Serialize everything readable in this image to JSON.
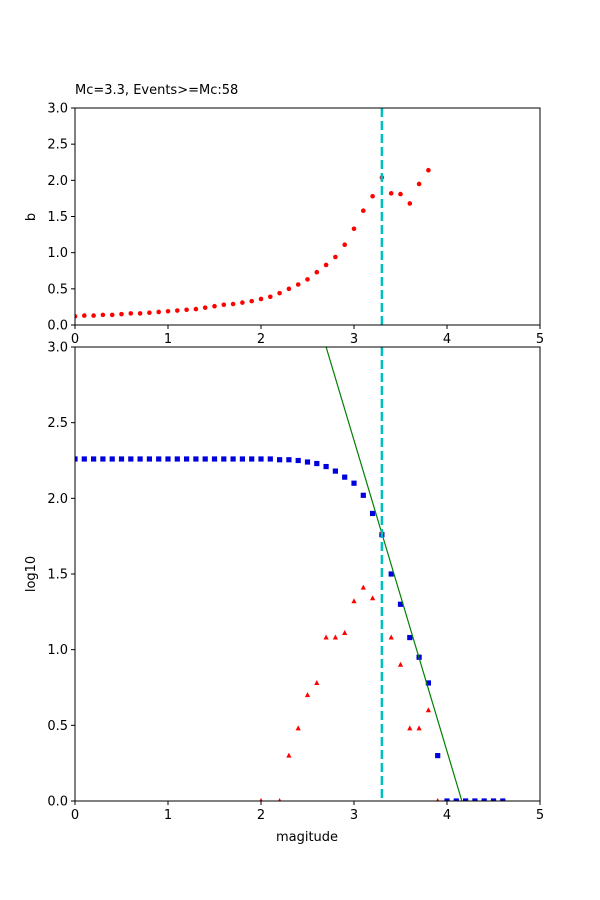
{
  "chart_data": [
    {
      "type": "scatter",
      "title": "Mc=3.3, Events>=Mc:58",
      "xlabel": "",
      "ylabel": "b",
      "xlim": [
        0,
        5
      ],
      "ylim": [
        0,
        3.0
      ],
      "xticks": [
        "0",
        "1",
        "2",
        "3",
        "4",
        "5"
      ],
      "yticks": [
        "0.0",
        "0.5",
        "1.0",
        "1.5",
        "2.0",
        "2.5",
        "3.0"
      ],
      "colors": {
        "points": "#ff0000",
        "mc_line": "#00bfbf"
      },
      "mc": 3.3,
      "series": [
        {
          "marker": "circle",
          "x": [
            0.0,
            0.1,
            0.2,
            0.3,
            0.4,
            0.5,
            0.6,
            0.7,
            0.8,
            0.9,
            1.0,
            1.1,
            1.2,
            1.3,
            1.4,
            1.5,
            1.6,
            1.7,
            1.8,
            1.9,
            2.0,
            2.1,
            2.2,
            2.3,
            2.4,
            2.5,
            2.6,
            2.7,
            2.8,
            2.9,
            3.0,
            3.1,
            3.2,
            3.3,
            3.4,
            3.5,
            3.6,
            3.7,
            3.8
          ],
          "y": [
            0.12,
            0.13,
            0.13,
            0.14,
            0.14,
            0.15,
            0.16,
            0.16,
            0.17,
            0.18,
            0.19,
            0.2,
            0.21,
            0.22,
            0.24,
            0.26,
            0.28,
            0.29,
            0.31,
            0.33,
            0.36,
            0.39,
            0.44,
            0.5,
            0.56,
            0.63,
            0.73,
            0.83,
            0.94,
            1.11,
            1.33,
            1.58,
            1.78,
            2.04,
            1.82,
            1.81,
            1.68,
            1.95,
            2.14
          ]
        }
      ]
    },
    {
      "type": "scatter",
      "title": "",
      "xlabel": "magitude",
      "ylabel": "log10",
      "xlim": [
        0,
        5
      ],
      "ylim": [
        0,
        3.0
      ],
      "xticks": [
        "0",
        "1",
        "2",
        "3",
        "4",
        "5"
      ],
      "yticks": [
        "0.0",
        "0.5",
        "1.0",
        "1.5",
        "2.0",
        "2.5",
        "3.0"
      ],
      "colors": {
        "cumulative": "#0000dd",
        "incremental": "#ff0000",
        "fit": "#008000",
        "mc_line": "#00bfbf"
      },
      "mc": 3.3,
      "series": [
        {
          "marker": "square",
          "x": [
            0.0,
            0.1,
            0.2,
            0.3,
            0.4,
            0.5,
            0.6,
            0.7,
            0.8,
            0.9,
            1.0,
            1.1,
            1.2,
            1.3,
            1.4,
            1.5,
            1.6,
            1.7,
            1.8,
            1.9,
            2.0,
            2.1,
            2.2,
            2.3,
            2.4,
            2.5,
            2.6,
            2.7,
            2.8,
            2.9,
            3.0,
            3.1,
            3.2,
            3.3,
            3.4,
            3.5,
            3.6,
            3.7,
            3.8,
            3.9,
            4.0,
            4.1,
            4.2,
            4.3,
            4.4,
            4.5,
            4.6
          ],
          "y": [
            2.26,
            2.26,
            2.26,
            2.26,
            2.26,
            2.26,
            2.26,
            2.26,
            2.26,
            2.26,
            2.26,
            2.26,
            2.26,
            2.26,
            2.26,
            2.26,
            2.26,
            2.26,
            2.26,
            2.26,
            2.26,
            2.26,
            2.255,
            2.255,
            2.25,
            2.24,
            2.23,
            2.21,
            2.18,
            2.14,
            2.1,
            2.02,
            1.9,
            1.76,
            1.5,
            1.3,
            1.08,
            0.95,
            0.78,
            0.3,
            0.0,
            0.0,
            0.0,
            0.0,
            0.0,
            0.0,
            0.0
          ]
        },
        {
          "marker": "triangle",
          "x": [
            2.0,
            2.2,
            2.3,
            2.4,
            2.5,
            2.6,
            2.7,
            2.8,
            2.9,
            3.0,
            3.1,
            3.2,
            3.3,
            3.4,
            3.5,
            3.6,
            3.7,
            3.8,
            3.9
          ],
          "y": [
            0.0,
            0.0,
            0.3,
            0.48,
            0.7,
            0.78,
            1.08,
            1.08,
            1.11,
            1.32,
            1.41,
            1.34,
            1.78,
            1.08,
            0.9,
            0.48,
            0.48,
            0.6,
            0.0
          ]
        },
        {
          "type": "line",
          "x": [
            2.7,
            4.16
          ],
          "y": [
            3.0,
            0.0
          ]
        }
      ]
    }
  ]
}
